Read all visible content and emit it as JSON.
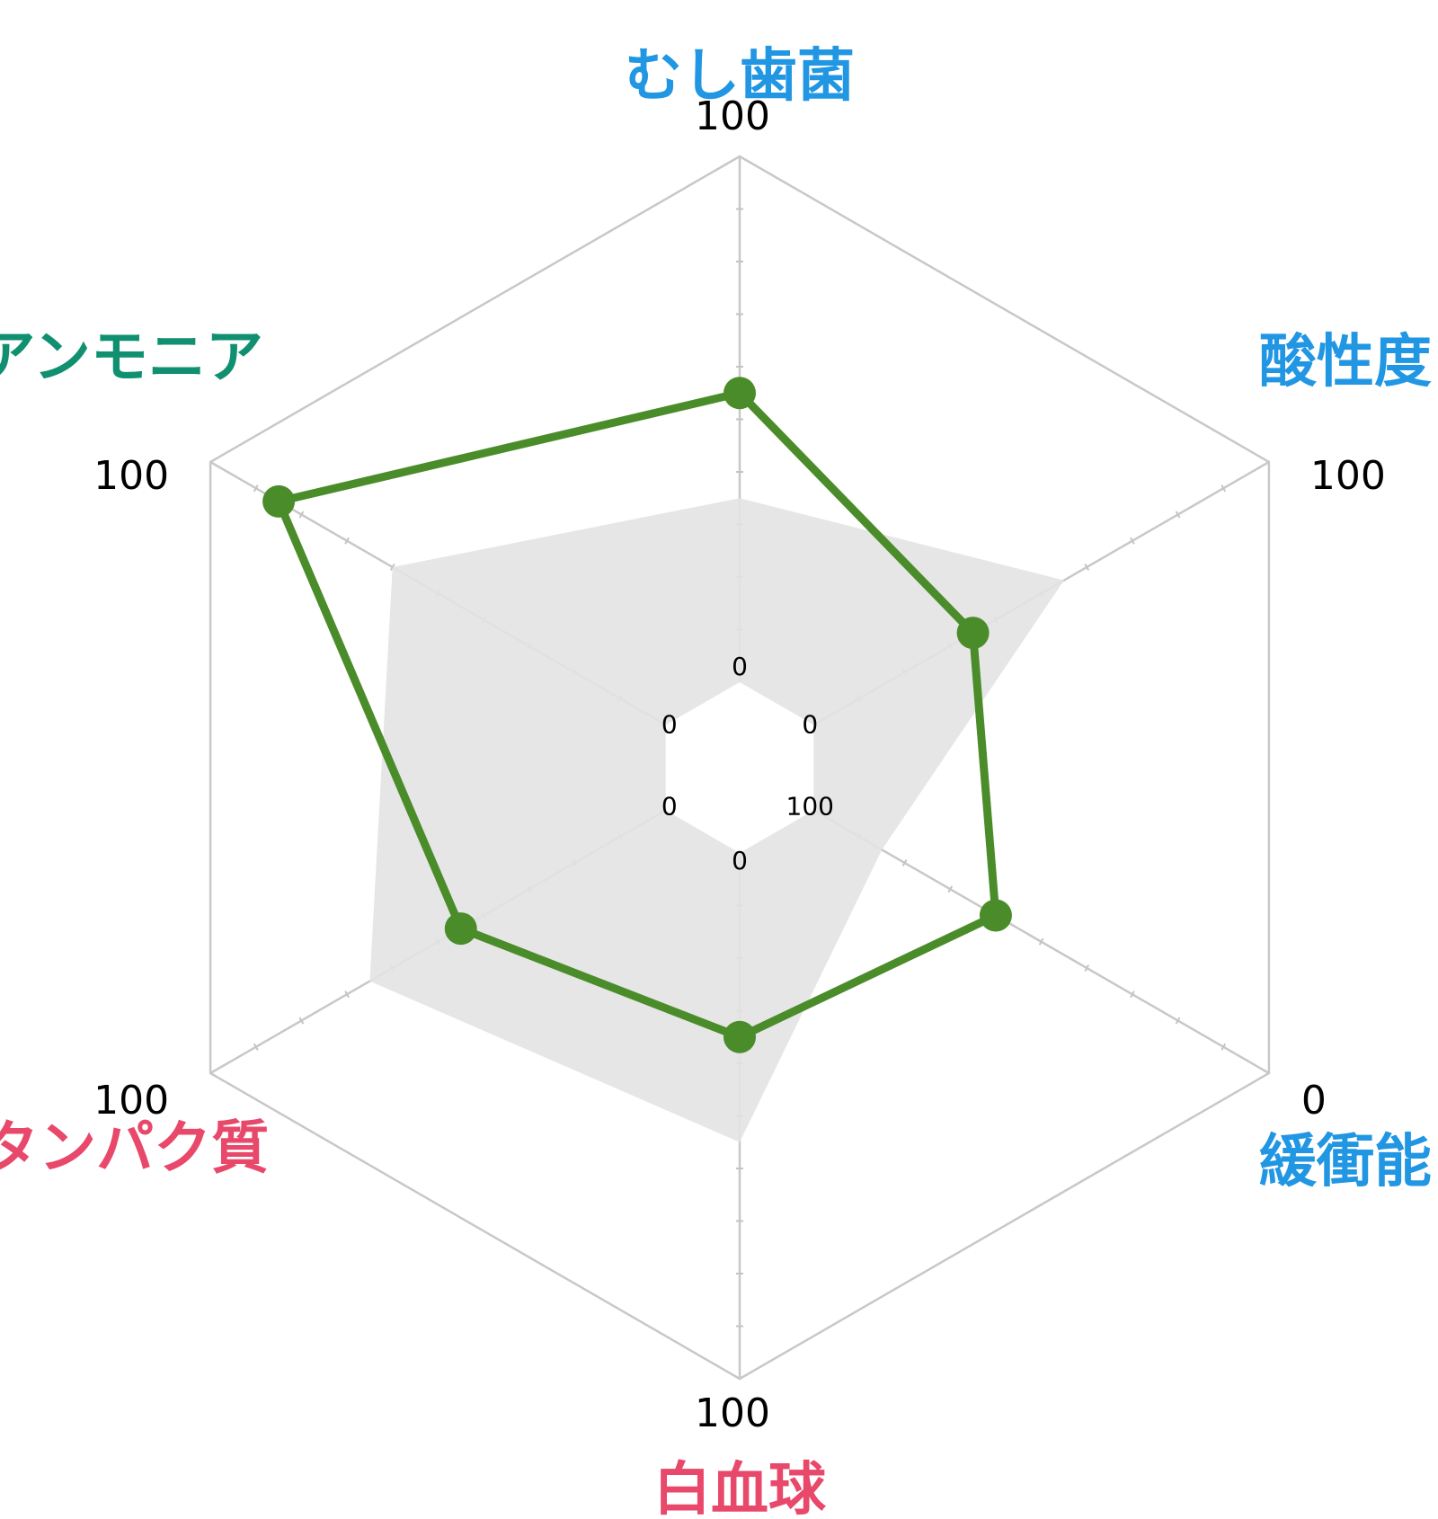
{
  "chart_data": {
    "type": "radar",
    "range": [
      0,
      100
    ],
    "grid": true,
    "axes": [
      {
        "label": "むし歯菌",
        "color": "#2196e3",
        "max_label": "100",
        "inner_label": "0",
        "reversed": false
      },
      {
        "label": "酸性度",
        "color": "#2196e3",
        "max_label": "100",
        "inner_label": "0",
        "reversed": false
      },
      {
        "label": "緩衝能",
        "color": "#2196e3",
        "max_label": "0",
        "inner_label": "100",
        "reversed": true
      },
      {
        "label": "白血球",
        "color": "#e8486a",
        "max_label": "100",
        "inner_label": "0",
        "reversed": false
      },
      {
        "label": "タンパク質",
        "color": "#e8486a",
        "max_label": "100",
        "inner_label": "0",
        "reversed": false
      },
      {
        "label": "アンモニア",
        "color": "#109070",
        "max_label": "100",
        "inner_label": "0",
        "reversed": false
      }
    ],
    "series": [
      {
        "values": [
          55,
          35,
          60,
          35,
          45,
          85
        ],
        "color": "#4b8c2a"
      }
    ],
    "reference": {
      "values": [
        35,
        55,
        85,
        55,
        65,
        60
      ],
      "color": "#e3e3e3"
    }
  }
}
